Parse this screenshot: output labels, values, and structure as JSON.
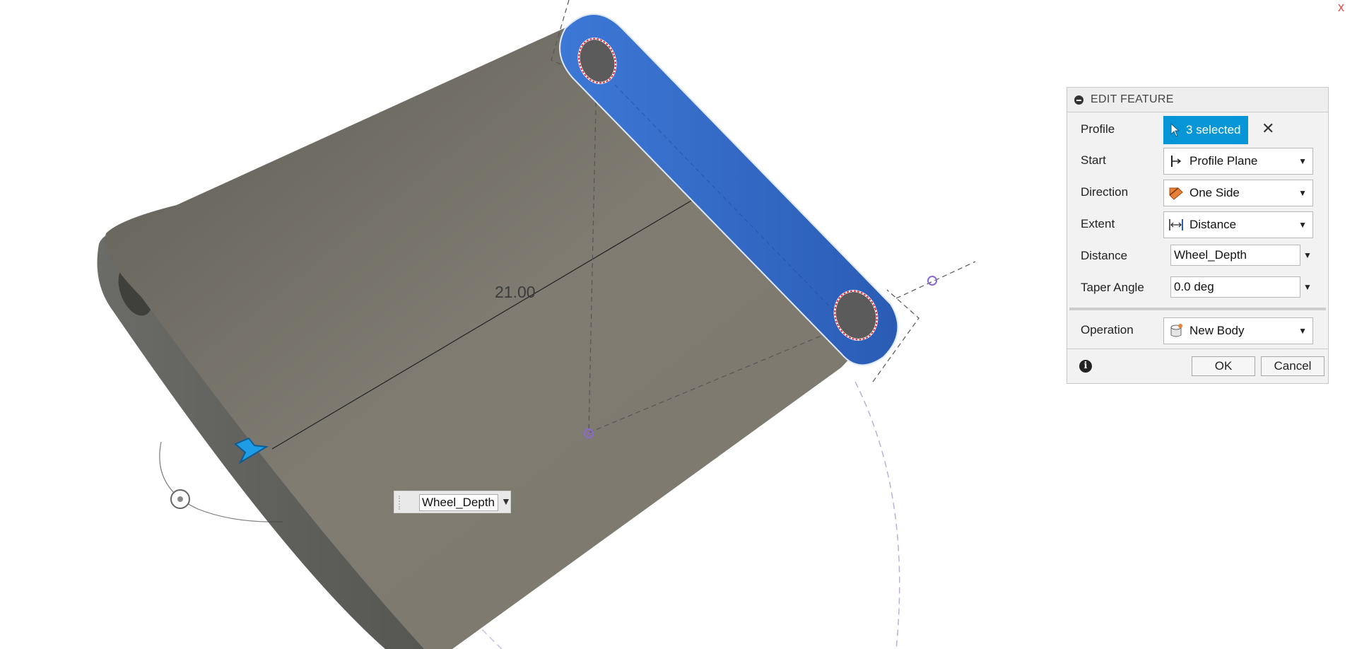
{
  "viewport": {
    "dimension_value": "21.00",
    "inline_distance_value": "Wheel_Depth",
    "corner_mark": "x"
  },
  "panel": {
    "title": "EDIT FEATURE",
    "profile": {
      "label": "Profile",
      "selection": "3 selected"
    },
    "start": {
      "label": "Start",
      "value": "Profile Plane",
      "icon": "profile-plane-icon"
    },
    "direction": {
      "label": "Direction",
      "value": "One Side",
      "icon": "one-side-icon"
    },
    "extent": {
      "label": "Extent",
      "value": "Distance",
      "icon": "distance-icon"
    },
    "distance": {
      "label": "Distance",
      "value": "Wheel_Depth"
    },
    "taper": {
      "label": "Taper Angle",
      "value": "0.0 deg"
    },
    "operation": {
      "label": "Operation",
      "value": "New Body",
      "icon": "new-body-icon"
    },
    "ok_label": "OK",
    "cancel_label": "Cancel"
  },
  "colors": {
    "accent": "#0696d7",
    "selection_blue": "#2f63c0",
    "model_gray": "#6e6a62"
  }
}
